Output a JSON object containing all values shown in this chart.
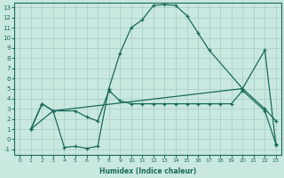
{
  "xlabel": "Humidex (Indice chaleur)",
  "bg_color": "#c8e8e0",
  "line_color": "#1a6b5a",
  "grid_color": "#a8ccc4",
  "xlim": [
    -0.5,
    23.5
  ],
  "ylim": [
    -1.5,
    13.5
  ],
  "xticks": [
    0,
    1,
    2,
    3,
    4,
    5,
    6,
    7,
    8,
    9,
    10,
    11,
    12,
    13,
    14,
    15,
    16,
    17,
    18,
    19,
    20,
    21,
    22,
    23
  ],
  "yticks": [
    -1,
    0,
    1,
    2,
    3,
    4,
    5,
    6,
    7,
    8,
    9,
    10,
    11,
    12,
    13
  ],
  "line1_x": [
    1,
    2,
    3,
    4,
    5,
    6,
    7,
    8,
    9,
    10,
    11,
    12,
    13,
    14,
    15,
    16,
    17,
    20,
    22,
    23
  ],
  "line1_y": [
    1,
    3.5,
    2.8,
    -0.8,
    -0.7,
    -0.9,
    -0.7,
    5.0,
    8.5,
    11.0,
    11.8,
    13.2,
    13.3,
    13.2,
    12.2,
    10.5,
    8.8,
    5.0,
    8.8,
    -0.6
  ],
  "line2_x": [
    1,
    3,
    20,
    22,
    23
  ],
  "line2_y": [
    1,
    2.8,
    5.0,
    3.0,
    1.8
  ],
  "line3_x": [
    1,
    2,
    3,
    5,
    6,
    7,
    8,
    9,
    10,
    11,
    12,
    13,
    14,
    15,
    16,
    17,
    18,
    19,
    20,
    22,
    23
  ],
  "line3_y": [
    1,
    3.5,
    2.8,
    2.8,
    2.2,
    1.8,
    4.8,
    3.8,
    3.5,
    3.5,
    3.5,
    3.5,
    3.5,
    3.5,
    3.5,
    3.5,
    3.5,
    3.5,
    4.8,
    2.8,
    -0.5
  ]
}
